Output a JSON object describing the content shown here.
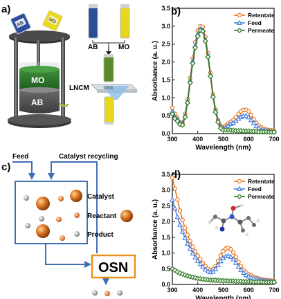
{
  "panels": {
    "a": {
      "label": "a)",
      "bottle_labels": [
        "AB",
        "MO"
      ],
      "vial_labels": [
        "AB",
        "MO"
      ],
      "stack_labels": [
        "MO",
        "AB"
      ],
      "membrane_label": "LNCM",
      "membrane_text": "OSN"
    },
    "b": {
      "label": "b)"
    },
    "c": {
      "label": "c)",
      "feed_label": "Feed",
      "recycle_label": "Catalyst recycling",
      "legend": [
        "Catalyst",
        "Reactant",
        "Product"
      ],
      "osn_label": "OSN"
    },
    "d": {
      "label": "d)"
    }
  },
  "colors": {
    "retentate": "#e8731c",
    "feed": "#4a7fe0",
    "permeate": "#2f7a22",
    "ab_blue": "#2b4f9e",
    "mo_yellow": "#e8d81a",
    "osn_box": "#e8921e",
    "flow_arrow": "#3e6fb5"
  },
  "chart_data": [
    {
      "type": "line",
      "panel": "b",
      "xlabel": "Wavelength (nm)",
      "ylabel": "Absorbance (a. u.)",
      "xlim": [
        300,
        700
      ],
      "ylim": [
        0,
        3.5
      ],
      "xticks": [
        300,
        400,
        500,
        600,
        700
      ],
      "yticks": [
        0.0,
        0.5,
        1.0,
        1.5,
        2.0,
        2.5,
        3.0,
        3.5
      ],
      "legend_position": "top-right",
      "x": [
        300,
        310,
        320,
        330,
        340,
        350,
        360,
        370,
        380,
        390,
        400,
        410,
        420,
        430,
        440,
        450,
        460,
        470,
        480,
        490,
        500,
        510,
        520,
        530,
        540,
        550,
        560,
        570,
        580,
        590,
        600,
        610,
        620,
        630,
        640,
        650,
        660,
        670,
        680,
        690,
        700
      ],
      "series": [
        {
          "name": "Retentate",
          "values": [
            0.72,
            0.55,
            0.45,
            0.33,
            0.3,
            0.55,
            0.95,
            1.55,
            2.1,
            2.55,
            2.88,
            3.0,
            2.98,
            2.7,
            2.25,
            1.7,
            1.1,
            0.68,
            0.38,
            0.22,
            0.18,
            0.22,
            0.28,
            0.33,
            0.38,
            0.45,
            0.55,
            0.62,
            0.66,
            0.66,
            0.62,
            0.52,
            0.4,
            0.3,
            0.22,
            0.17,
            0.13,
            0.11,
            0.1,
            0.09,
            0.08
          ]
        },
        {
          "name": "Feed",
          "values": [
            0.62,
            0.48,
            0.4,
            0.3,
            0.28,
            0.5,
            0.9,
            1.48,
            2.02,
            2.46,
            2.78,
            2.92,
            2.9,
            2.62,
            2.18,
            1.64,
            1.05,
            0.64,
            0.35,
            0.19,
            0.15,
            0.18,
            0.23,
            0.27,
            0.3,
            0.35,
            0.42,
            0.47,
            0.5,
            0.5,
            0.46,
            0.38,
            0.29,
            0.21,
            0.15,
            0.11,
            0.09,
            0.08,
            0.07,
            0.06,
            0.05
          ]
        },
        {
          "name": "Permeate",
          "values": [
            0.55,
            0.42,
            0.35,
            0.26,
            0.24,
            0.46,
            0.86,
            1.42,
            1.96,
            2.4,
            2.72,
            2.88,
            2.86,
            2.58,
            2.14,
            1.6,
            1.02,
            0.6,
            0.32,
            0.15,
            0.1,
            0.1,
            0.1,
            0.09,
            0.09,
            0.08,
            0.08,
            0.08,
            0.07,
            0.07,
            0.07,
            0.06,
            0.06,
            0.06,
            0.05,
            0.05,
            0.05,
            0.05,
            0.04,
            0.04,
            0.04
          ]
        }
      ]
    },
    {
      "type": "line",
      "panel": "d",
      "xlabel": "Wavelength (nm)",
      "ylabel": "Absorbance (a. u.)",
      "xlim": [
        300,
        700
      ],
      "ylim": [
        0,
        3.5
      ],
      "xticks": [
        300,
        400,
        500,
        600,
        700
      ],
      "yticks": [
        0.0,
        0.5,
        1.0,
        1.5,
        2.0,
        2.5,
        3.0,
        3.5
      ],
      "legend_position": "top-right",
      "x": [
        300,
        310,
        320,
        330,
        340,
        350,
        360,
        370,
        380,
        390,
        400,
        410,
        420,
        430,
        440,
        450,
        460,
        470,
        480,
        490,
        500,
        510,
        520,
        530,
        540,
        550,
        560,
        570,
        580,
        590,
        600,
        610,
        620,
        630,
        640,
        650,
        660,
        670,
        680,
        690,
        700
      ],
      "series": [
        {
          "name": "Retentate",
          "values": [
            3.4,
            3.05,
            2.7,
            2.35,
            2.05,
            1.8,
            1.58,
            1.38,
            1.2,
            1.05,
            0.92,
            0.8,
            0.68,
            0.58,
            0.5,
            0.46,
            0.48,
            0.58,
            0.75,
            0.92,
            1.06,
            1.14,
            1.16,
            1.12,
            1.02,
            0.88,
            0.72,
            0.58,
            0.46,
            0.38,
            0.32,
            0.28,
            0.24,
            0.21,
            0.19,
            0.17,
            0.15,
            0.14,
            0.13,
            0.12,
            0.11
          ]
        },
        {
          "name": "Feed",
          "values": [
            2.7,
            2.42,
            2.15,
            1.9,
            1.68,
            1.48,
            1.3,
            1.14,
            0.99,
            0.86,
            0.75,
            0.65,
            0.56,
            0.48,
            0.42,
            0.39,
            0.41,
            0.49,
            0.62,
            0.74,
            0.84,
            0.9,
            0.91,
            0.88,
            0.8,
            0.69,
            0.57,
            0.46,
            0.37,
            0.3,
            0.26,
            0.22,
            0.19,
            0.17,
            0.15,
            0.14,
            0.13,
            0.12,
            0.11,
            0.1,
            0.09
          ]
        },
        {
          "name": "Permeate",
          "values": [
            0.5,
            0.45,
            0.4,
            0.36,
            0.33,
            0.3,
            0.27,
            0.25,
            0.23,
            0.21,
            0.19,
            0.18,
            0.17,
            0.16,
            0.15,
            0.14,
            0.14,
            0.13,
            0.13,
            0.12,
            0.12,
            0.12,
            0.11,
            0.11,
            0.11,
            0.1,
            0.1,
            0.1,
            0.09,
            0.09,
            0.09,
            0.09,
            0.08,
            0.08,
            0.08,
            0.08,
            0.07,
            0.07,
            0.07,
            0.07,
            0.07
          ]
        }
      ]
    }
  ]
}
